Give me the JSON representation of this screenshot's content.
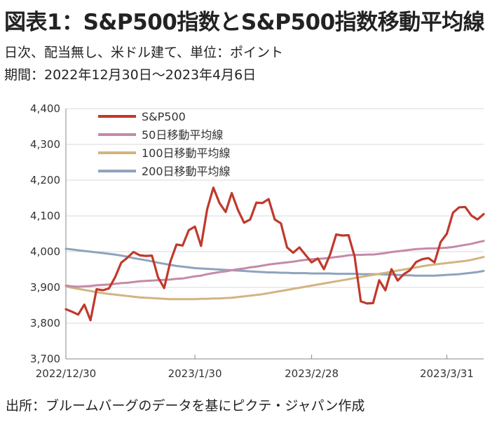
{
  "header": {
    "title": "図表1：S&P500指数とS&P500指数移動平均線",
    "subtitle_1": "日次、配当無し、米ドル建て、単位：ポイント",
    "subtitle_2": "期間：2022年12月30日～2023年4月6日"
  },
  "footer": {
    "source": "出所：ブルームバーグのデータを基にピクテ・ジャパン作成"
  },
  "chart_data": {
    "type": "line",
    "title": "",
    "xlabel": "",
    "ylabel": "",
    "ylim": [
      3700,
      4400
    ],
    "y_ticks": [
      "4,400",
      "4,300",
      "4,200",
      "4,100",
      "4,000",
      "3,900",
      "3,800",
      "3,700"
    ],
    "x_ticks": [
      "2022/12/30",
      "2023/1/30",
      "2023/2/28",
      "2023/3/31"
    ],
    "grid": true,
    "legend_position": "top-left",
    "series": [
      {
        "name": "S&P500",
        "color": "#c0392b",
        "values": [
          3839,
          3832,
          3824,
          3852,
          3808,
          3895,
          3892,
          3897,
          3928,
          3969,
          3983,
          3999,
          3990,
          3988,
          3989,
          3928,
          3898,
          3972,
          4020,
          4017,
          4060,
          4070,
          4016,
          4119,
          4179,
          4136,
          4111,
          4164,
          4117,
          4081,
          4090,
          4137,
          4136,
          4147,
          4090,
          4079,
          4012,
          3997,
          4012,
          3991,
          3970,
          3981,
          3951,
          3992,
          4048,
          4045,
          4046,
          3986,
          3861,
          3855,
          3856,
          3920,
          3892,
          3951,
          3919,
          3937,
          3948,
          3971,
          3979,
          3982,
          3970,
          4027,
          4050,
          4109,
          4124,
          4125,
          4101,
          4090,
          4105
        ]
      },
      {
        "name": "50日移動平均線",
        "color": "#c48aa8",
        "values": [
          3905,
          3903,
          3902,
          3903,
          3904,
          3906,
          3907,
          3908,
          3910,
          3912,
          3913,
          3915,
          3917,
          3918,
          3919,
          3920,
          3921,
          3922,
          3924,
          3925,
          3928,
          3931,
          3933,
          3937,
          3940,
          3943,
          3945,
          3948,
          3951,
          3953,
          3956,
          3958,
          3961,
          3964,
          3966,
          3968,
          3970,
          3972,
          3975,
          3977,
          3979,
          3980,
          3981,
          3983,
          3985,
          3987,
          3990,
          3991,
          3991,
          3992,
          3992,
          3994,
          3996,
          3999,
          4001,
          4003,
          4005,
          4007,
          4008,
          4009,
          4009,
          4010,
          4011,
          4013,
          4016,
          4019,
          4022,
          4026,
          4030
        ]
      },
      {
        "name": "100日移動平均線",
        "color": "#d3b480",
        "values": [
          3903,
          3899,
          3896,
          3893,
          3890,
          3887,
          3884,
          3882,
          3880,
          3878,
          3876,
          3874,
          3872,
          3871,
          3870,
          3869,
          3868,
          3867,
          3867,
          3867,
          3867,
          3867,
          3868,
          3868,
          3869,
          3869,
          3870,
          3871,
          3873,
          3875,
          3877,
          3879,
          3881,
          3884,
          3887,
          3890,
          3893,
          3896,
          3899,
          3902,
          3905,
          3908,
          3911,
          3914,
          3917,
          3920,
          3923,
          3926,
          3929,
          3932,
          3935,
          3938,
          3941,
          3944,
          3947,
          3950,
          3953,
          3956,
          3959,
          3962,
          3964,
          3966,
          3968,
          3970,
          3972,
          3974,
          3977,
          3981,
          3985
        ]
      },
      {
        "name": "200日移動平均線",
        "color": "#8ea3bd",
        "values": [
          4008,
          4006,
          4004,
          4002,
          4000,
          3998,
          3996,
          3994,
          3992,
          3989,
          3986,
          3982,
          3979,
          3976,
          3973,
          3969,
          3966,
          3963,
          3960,
          3958,
          3956,
          3954,
          3953,
          3952,
          3951,
          3950,
          3949,
          3948,
          3947,
          3946,
          3945,
          3944,
          3943,
          3942,
          3942,
          3941,
          3941,
          3940,
          3940,
          3940,
          3939,
          3939,
          3939,
          3939,
          3938,
          3938,
          3938,
          3938,
          3937,
          3937,
          3937,
          3937,
          3936,
          3936,
          3935,
          3934,
          3934,
          3933,
          3933,
          3933,
          3933,
          3934,
          3935,
          3936,
          3937,
          3939,
          3941,
          3943,
          3946
        ]
      }
    ]
  }
}
